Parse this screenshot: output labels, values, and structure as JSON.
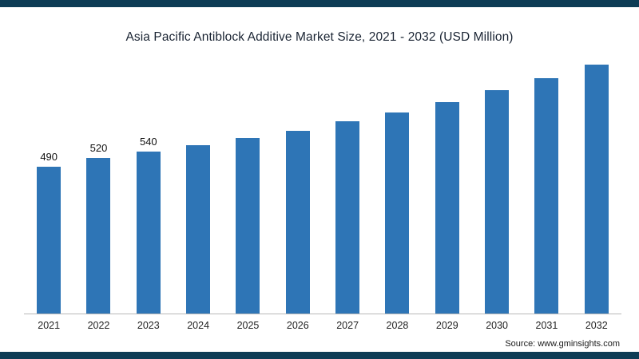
{
  "page": {
    "accent_color": "#0d3c55",
    "background": "#ffffff"
  },
  "chart_data": {
    "type": "bar",
    "title": "Asia Pacific Antiblock Additive Market Size, 2021 - 2032 (USD Million)",
    "categories": [
      "2021",
      "2022",
      "2023",
      "2024",
      "2025",
      "2026",
      "2027",
      "2028",
      "2029",
      "2030",
      "2031",
      "2032"
    ],
    "values": [
      490,
      520,
      540,
      560,
      585,
      610,
      640,
      670,
      705,
      745,
      785,
      830
    ],
    "data_labels": [
      "490",
      "520",
      "540",
      "",
      "",
      "",
      "",
      "",
      "",
      "",
      "",
      ""
    ],
    "bar_color": "#2e75b6",
    "xlabel": "",
    "ylabel": "",
    "ylim": [
      0,
      860
    ],
    "grid": false,
    "legend": false,
    "units": "USD Million"
  },
  "source": {
    "label": "Source: www.gminsights.com"
  }
}
